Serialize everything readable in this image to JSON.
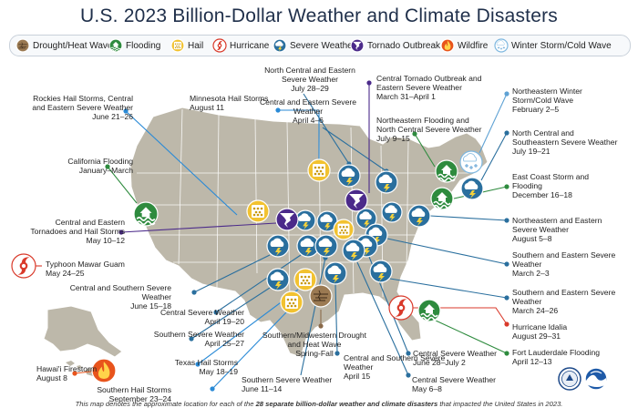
{
  "title": "U.S. 2023 Billion-Dollar Weather and Climate Disasters",
  "legend": [
    {
      "label": "Drought/Heat Wave",
      "color": "#8a6a4a",
      "icon": "drought-icon"
    },
    {
      "label": "Flooding",
      "color": "#2e8b3e",
      "icon": "flood-icon"
    },
    {
      "label": "Hail",
      "color": "#f2c230",
      "icon": "hail-icon"
    },
    {
      "label": "Hurricane",
      "color": "#d93a2b",
      "icon": "hurricane-icon"
    },
    {
      "label": "Severe Weather",
      "color": "#2a6f9e",
      "icon": "severe-weather-icon"
    },
    {
      "label": "Tornado Outbreak",
      "color": "#4b2a8a",
      "icon": "tornado-icon"
    },
    {
      "label": "Wildfire",
      "color": "#e8541c",
      "icon": "wildfire-icon"
    },
    {
      "label": "Winter Storm/Cold Wave",
      "color": "#7fb8e0",
      "icon": "winter-storm-icon"
    }
  ],
  "events": [
    {
      "name": "Rockies Hail Storms, Central and Eastern Severe Weather",
      "date": "June 21–26"
    },
    {
      "name": "Minnesota Hail Storms",
      "date": "August 11"
    },
    {
      "name": "North Central and Eastern Severe Weather",
      "date": "July 28–29"
    },
    {
      "name": "Central and Eastern Severe Weather",
      "date": "April 4–6"
    },
    {
      "name": "Central Tornado Outbreak and Eastern Severe Weather",
      "date": "March 31–April 1"
    },
    {
      "name": "Northeastern Flooding and North Central Severe Weather",
      "date": "July 9–15"
    },
    {
      "name": "Northeastern Winter Storm/Cold Wave",
      "date": "February 2–5"
    },
    {
      "name": "North Central and Southeastern Severe Weather",
      "date": "July 19–21"
    },
    {
      "name": "East Coast Storm and Flooding",
      "date": "December 16–18"
    },
    {
      "name": "California Flooding",
      "date": "January–March"
    },
    {
      "name": "Northeastern and Eastern Severe Weather",
      "date": "August 5–8"
    },
    {
      "name": "Central and Eastern Tornadoes and Hail Storms",
      "date": "May 10–12"
    },
    {
      "name": "Southern and Eastern Severe Weather",
      "date": "March 2–3"
    },
    {
      "name": "Typhoon Mawar Guam",
      "date": "May 24–25"
    },
    {
      "name": "Central and Southern Severe Weather",
      "date": "June 15–18"
    },
    {
      "name": "Southern and Eastern Severe Weather",
      "date": "March 24–26"
    },
    {
      "name": "Central Severe Weather",
      "date": "April 19–20"
    },
    {
      "name": "Hurricane Idalia",
      "date": "August 29–31"
    },
    {
      "name": "Southern Severe Weather",
      "date": "April 25–27"
    },
    {
      "name": "Fort Lauderdale Flooding",
      "date": "April 12–13"
    },
    {
      "name": "Southern/Midwestern Drought and Heat Wave",
      "date": "Spring-Fall"
    },
    {
      "name": "Central and Southern Severe Weather",
      "date": "April 15"
    },
    {
      "name": "Central Severe Weather",
      "date": "June 28–July 2"
    },
    {
      "name": "Texas Hail Storms",
      "date": "May 18–19"
    },
    {
      "name": "Central Severe Weather",
      "date": "May 6–8"
    },
    {
      "name": "Hawai'i Firestorm",
      "date": "August 8"
    },
    {
      "name": "Southern Hail Storms",
      "date": "September 23–24"
    },
    {
      "name": "Southern Severe Weather",
      "date": "June 11–14"
    }
  ],
  "footnote": {
    "pre": "This map denotes the approximate location for each of the ",
    "bold": "28 separate billion-dollar weather and climate disasters",
    "post": " that impacted the United States in 2023."
  }
}
